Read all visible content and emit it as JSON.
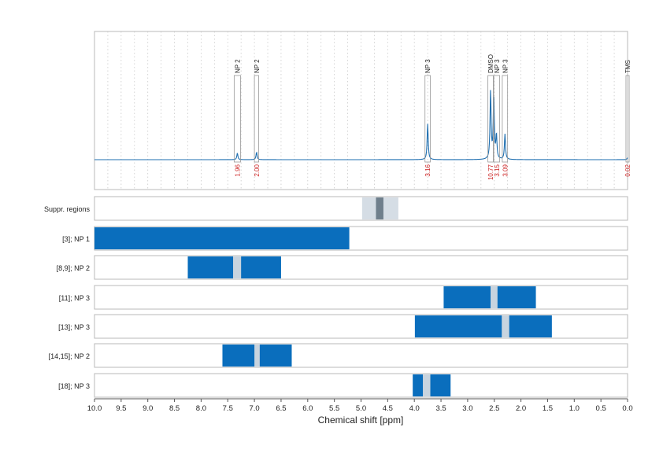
{
  "chart_data": {
    "type": "line",
    "xlabel": "Chemical shift [ppm]",
    "xlim": [
      10.0,
      0.0
    ],
    "x_ticks": [
      "10.0",
      "9.5",
      "9.0",
      "8.5",
      "8.0",
      "7.5",
      "7.0",
      "6.5",
      "6.0",
      "5.5",
      "5.0",
      "4.5",
      "4.0",
      "3.5",
      "3.0",
      "2.5",
      "2.0",
      "1.5",
      "1.0",
      "0.5",
      "0.0"
    ],
    "x_reversed": true,
    "grid": "vertical dotted",
    "spectrum": {
      "color": "#1f6fb0",
      "peaks": [
        {
          "x": 7.32,
          "h": 0.07
        },
        {
          "x": 6.96,
          "h": 0.08
        },
        {
          "x": 3.75,
          "h": 0.38
        },
        {
          "x": 2.57,
          "h": 0.72
        },
        {
          "x": 2.51,
          "h": 0.66
        },
        {
          "x": 2.46,
          "h": 0.25
        },
        {
          "x": 2.3,
          "h": 0.27
        },
        {
          "x": 0.0,
          "h": 0.02
        }
      ]
    },
    "peak_annotations": [
      {
        "label": "NP 2",
        "x_from": 7.38,
        "x_to": 7.26,
        "integral": "1.96"
      },
      {
        "label": "NP 2",
        "x_from": 7.0,
        "x_to": 6.92,
        "integral": "2.00"
      },
      {
        "label": "NP 3",
        "x_from": 3.8,
        "x_to": 3.7,
        "integral": "3.16"
      },
      {
        "label": "DMSO",
        "x_from": 2.62,
        "x_to": 2.52,
        "integral": "10.77"
      },
      {
        "label": "NP 3",
        "x_from": 2.51,
        "x_to": 2.4,
        "integral": "3.15"
      },
      {
        "label": "NP 3",
        "x_from": 2.35,
        "x_to": 2.25,
        "integral": "3.09"
      },
      {
        "label": "TMS",
        "x_from": 0.03,
        "x_to": -0.03,
        "integral": "0.02"
      }
    ],
    "integral_color": "#cc2222",
    "rows": [
      {
        "label": "Suppr. regions",
        "type": "suppression",
        "light": [
          4.98,
          4.3
        ],
        "dark": [
          4.72,
          4.58
        ]
      },
      {
        "label": "[3]; NP 1",
        "bars": [
          [
            10.0,
            5.22
          ]
        ],
        "gaps": []
      },
      {
        "label": "[8,9]; NP 2",
        "bars": [
          [
            8.25,
            6.5
          ]
        ],
        "gaps": [
          [
            7.4,
            7.25
          ]
        ]
      },
      {
        "label": "[11]; NP 3",
        "bars": [
          [
            3.45,
            1.72
          ]
        ],
        "gaps": [
          [
            2.57,
            2.44
          ]
        ]
      },
      {
        "label": "[13]; NP 3",
        "bars": [
          [
            3.99,
            1.42
          ]
        ],
        "gaps": [
          [
            2.36,
            2.22
          ]
        ]
      },
      {
        "label": "[14,15]; NP 2",
        "bars": [
          [
            7.6,
            6.3
          ]
        ],
        "gaps": [
          [
            7.0,
            6.9
          ]
        ]
      },
      {
        "label": "[18]; NP 3",
        "bars": [
          [
            4.03,
            3.32
          ]
        ],
        "gaps": [
          [
            3.84,
            3.7
          ]
        ]
      }
    ],
    "colors": {
      "bar": "#0a6ebd",
      "gap": "#c8d4df",
      "suppr_light": "#d5dde5",
      "suppr_dark": "#6f7f8c",
      "frame": "#b8b8b8"
    }
  }
}
